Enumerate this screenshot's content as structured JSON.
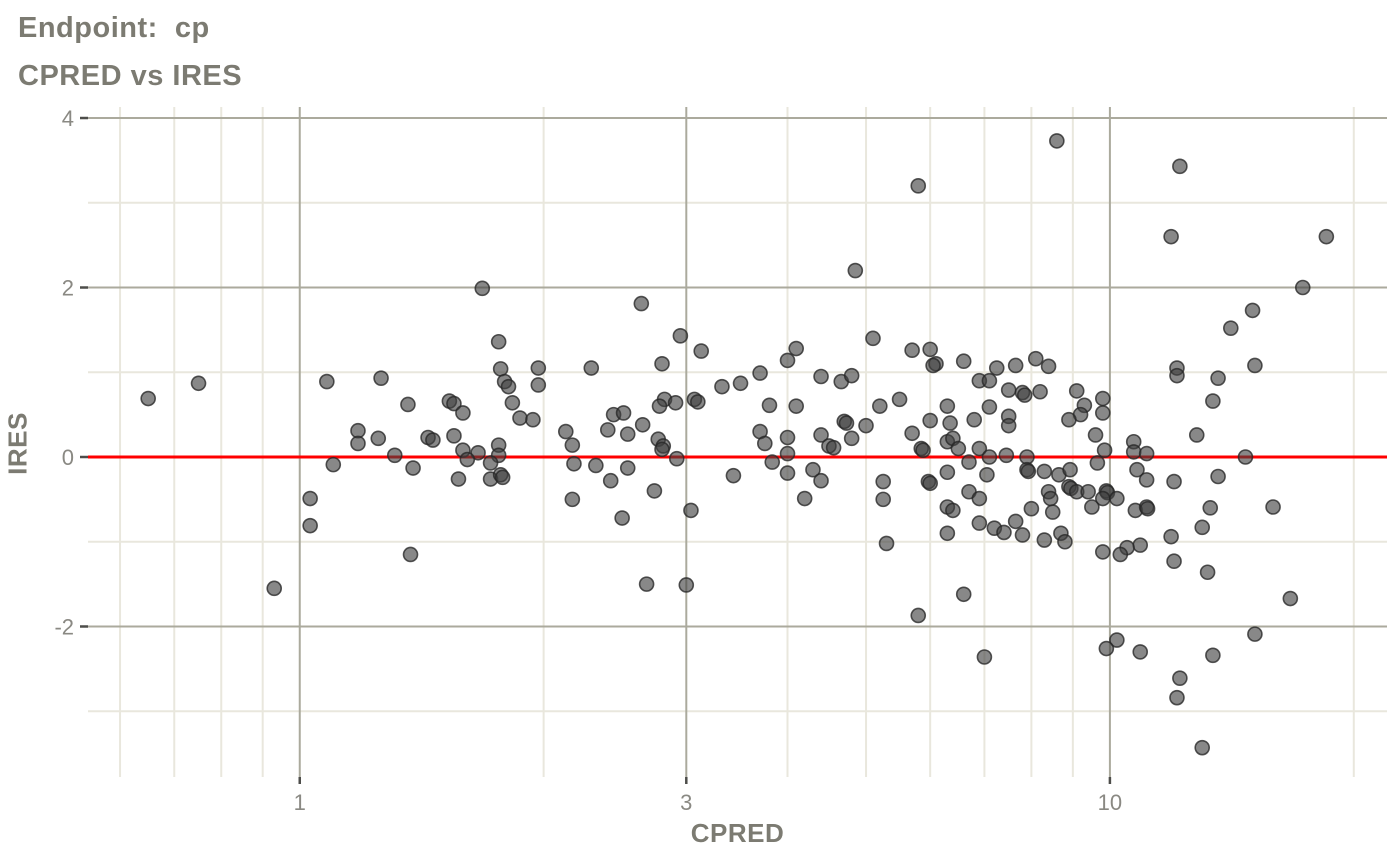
{
  "title": "Endpoint:  cp",
  "subtitle": "CPRED vs IRES",
  "chart_data": {
    "type": "scatter",
    "title": "Endpoint:  cp",
    "subtitle": "CPRED vs IRES",
    "xlabel": "CPRED",
    "ylabel": "IRES",
    "x_scale": "log10",
    "xlim": [
      0.5478,
      21.98
    ],
    "ylim": [
      -3.776,
      4.13
    ],
    "x_major_ticks": [
      1,
      3,
      10
    ],
    "x_major_tick_labels": [
      "1",
      "3",
      "10"
    ],
    "x_minor_ticks": [
      0.6,
      0.7,
      0.8,
      0.9,
      2,
      4,
      5,
      6,
      7,
      8,
      9,
      20
    ],
    "y_major_ticks": [
      -2,
      0,
      2,
      4
    ],
    "y_major_tick_labels": [
      "-2",
      "0",
      "2",
      "4"
    ],
    "y_minor_ticks": [
      -3,
      -1,
      1,
      3
    ],
    "grid": true,
    "legend": "none",
    "reference_line_y": 0,
    "colors": {
      "reference_line": "#ff0000",
      "major_grid": "#abaa9d",
      "minor_grid": "#e9e7dd",
      "point_fill": "#3f3f3f",
      "point_stroke": "#262626",
      "title_text": "#7c7b72",
      "tick_label": "#8a8983",
      "tick_mark": "#4d4d4a",
      "background": "#ffffff"
    },
    "points": [
      [
        0.65,
        0.69
      ],
      [
        0.75,
        0.87
      ],
      [
        1.08,
        0.89
      ],
      [
        1.26,
        0.93
      ],
      [
        1.36,
        0.62
      ],
      [
        1.18,
        0.31
      ],
      [
        1.25,
        0.22
      ],
      [
        1.18,
        0.16
      ],
      [
        1.31,
        0.02
      ],
      [
        1.38,
        -0.13
      ],
      [
        1.1,
        -0.09
      ],
      [
        1.03,
        -0.49
      ],
      [
        1.03,
        -0.81
      ],
      [
        1.37,
        -1.15
      ],
      [
        0.93,
        -1.55
      ],
      [
        1.68,
        1.99
      ],
      [
        2.64,
        1.81
      ],
      [
        1.76,
        1.36
      ],
      [
        2.95,
        1.43
      ],
      [
        3.13,
        1.25
      ],
      [
        1.77,
        1.04
      ],
      [
        1.97,
        1.05
      ],
      [
        2.29,
        1.05
      ],
      [
        2.8,
        1.1
      ],
      [
        1.79,
        0.89
      ],
      [
        1.81,
        0.83
      ],
      [
        1.97,
        0.85
      ],
      [
        3.32,
        0.83
      ],
      [
        1.53,
        0.66
      ],
      [
        1.55,
        0.63
      ],
      [
        1.59,
        0.52
      ],
      [
        1.83,
        0.64
      ],
      [
        2.82,
        0.68
      ],
      [
        2.78,
        0.6
      ],
      [
        2.91,
        0.64
      ],
      [
        3.07,
        0.68
      ],
      [
        3.1,
        0.65
      ],
      [
        1.87,
        0.46
      ],
      [
        1.94,
        0.44
      ],
      [
        2.44,
        0.5
      ],
      [
        2.51,
        0.52
      ],
      [
        2.4,
        0.32
      ],
      [
        2.54,
        0.27
      ],
      [
        2.65,
        0.38
      ],
      [
        1.44,
        0.23
      ],
      [
        1.46,
        0.2
      ],
      [
        1.55,
        0.25
      ],
      [
        2.13,
        0.3
      ],
      [
        2.77,
        0.21
      ],
      [
        2.81,
        0.13
      ],
      [
        1.59,
        0.08
      ],
      [
        1.66,
        0.05
      ],
      [
        1.61,
        -0.03
      ],
      [
        1.76,
        0.14
      ],
      [
        1.76,
        0.02
      ],
      [
        1.72,
        -0.07
      ],
      [
        2.17,
        0.14
      ],
      [
        2.18,
        -0.08
      ],
      [
        2.8,
        0.09
      ],
      [
        2.92,
        -0.02
      ],
      [
        2.32,
        -0.1
      ],
      [
        2.54,
        -0.13
      ],
      [
        1.57,
        -0.26
      ],
      [
        1.72,
        -0.26
      ],
      [
        1.77,
        -0.21
      ],
      [
        1.78,
        -0.24
      ],
      [
        2.42,
        -0.28
      ],
      [
        2.74,
        -0.4
      ],
      [
        2.17,
        -0.5
      ],
      [
        2.5,
        -0.72
      ],
      [
        3.04,
        -0.63
      ],
      [
        3.43,
        -0.22
      ],
      [
        2.68,
        -1.5
      ],
      [
        3.0,
        -1.51
      ],
      [
        5.8,
        3.2
      ],
      [
        4.85,
        2.2
      ],
      [
        8.6,
        3.73
      ],
      [
        5.1,
        1.4
      ],
      [
        4.1,
        1.28
      ],
      [
        5.7,
        1.26
      ],
      [
        6.0,
        1.27
      ],
      [
        4.0,
        1.14
      ],
      [
        6.1,
        1.1
      ],
      [
        6.05,
        1.08
      ],
      [
        6.6,
        1.13
      ],
      [
        3.7,
        0.99
      ],
      [
        3.5,
        0.87
      ],
      [
        4.4,
        0.95
      ],
      [
        4.66,
        0.89
      ],
      [
        4.8,
        0.96
      ],
      [
        6.9,
        0.9
      ],
      [
        7.1,
        0.9
      ],
      [
        7.25,
        1.05
      ],
      [
        7.65,
        1.08
      ],
      [
        8.1,
        1.16
      ],
      [
        8.4,
        1.07
      ],
      [
        7.5,
        0.79
      ],
      [
        7.8,
        0.76
      ],
      [
        7.85,
        0.73
      ],
      [
        8.2,
        0.77
      ],
      [
        3.8,
        0.61
      ],
      [
        4.1,
        0.6
      ],
      [
        5.2,
        0.6
      ],
      [
        5.5,
        0.68
      ],
      [
        6.3,
        0.6
      ],
      [
        7.1,
        0.59
      ],
      [
        4.7,
        0.42
      ],
      [
        4.73,
        0.4
      ],
      [
        5.0,
        0.37
      ],
      [
        4.8,
        0.22
      ],
      [
        6.0,
        0.43
      ],
      [
        6.35,
        0.4
      ],
      [
        6.8,
        0.44
      ],
      [
        7.5,
        0.48
      ],
      [
        7.5,
        0.37
      ],
      [
        3.7,
        0.3
      ],
      [
        4.0,
        0.23
      ],
      [
        3.75,
        0.16
      ],
      [
        4.4,
        0.26
      ],
      [
        4.5,
        0.13
      ],
      [
        4.56,
        0.11
      ],
      [
        5.7,
        0.28
      ],
      [
        5.85,
        0.1
      ],
      [
        5.88,
        0.08
      ],
      [
        6.3,
        0.18
      ],
      [
        6.4,
        0.22
      ],
      [
        6.5,
        0.1
      ],
      [
        6.9,
        0.1
      ],
      [
        7.1,
        0.0
      ],
      [
        7.45,
        0.02
      ],
      [
        7.9,
        0.0
      ],
      [
        3.83,
        -0.06
      ],
      [
        4.0,
        0.04
      ],
      [
        4.0,
        -0.19
      ],
      [
        4.3,
        -0.15
      ],
      [
        4.4,
        -0.28
      ],
      [
        4.2,
        -0.49
      ],
      [
        5.25,
        -0.29
      ],
      [
        5.25,
        -0.5
      ],
      [
        5.97,
        -0.29
      ],
      [
        6.0,
        -0.31
      ],
      [
        6.3,
        -0.18
      ],
      [
        6.7,
        -0.06
      ],
      [
        7.05,
        -0.21
      ],
      [
        6.3,
        -0.59
      ],
      [
        6.4,
        -0.63
      ],
      [
        6.7,
        -0.41
      ],
      [
        6.9,
        -0.49
      ],
      [
        7.9,
        -0.15
      ],
      [
        7.93,
        -0.17
      ],
      [
        8.3,
        -0.17
      ],
      [
        8.65,
        -0.21
      ],
      [
        8.9,
        -0.35
      ],
      [
        8.4,
        -0.41
      ],
      [
        8.45,
        -0.49
      ],
      [
        8.0,
        -0.61
      ],
      [
        8.5,
        -0.65
      ],
      [
        6.9,
        -0.78
      ],
      [
        7.2,
        -0.84
      ],
      [
        7.65,
        -0.76
      ],
      [
        7.8,
        -0.92
      ],
      [
        6.3,
        -0.9
      ],
      [
        7.4,
        -0.89
      ],
      [
        8.7,
        -0.9
      ],
      [
        8.3,
        -0.98
      ],
      [
        8.8,
        -1.0
      ],
      [
        5.3,
        -1.02
      ],
      [
        6.6,
        -1.62
      ],
      [
        5.8,
        -1.87
      ],
      [
        7.0,
        -2.36
      ],
      [
        12.2,
        3.43
      ],
      [
        11.9,
        2.6
      ],
      [
        18.5,
        2.6
      ],
      [
        17.3,
        2.0
      ],
      [
        15.0,
        1.73
      ],
      [
        14.1,
        1.52
      ],
      [
        12.1,
        1.05
      ],
      [
        12.1,
        0.96
      ],
      [
        15.1,
        1.08
      ],
      [
        13.6,
        0.93
      ],
      [
        13.4,
        0.66
      ],
      [
        9.1,
        0.78
      ],
      [
        9.8,
        0.69
      ],
      [
        9.3,
        0.61
      ],
      [
        9.2,
        0.5
      ],
      [
        8.9,
        0.44
      ],
      [
        9.8,
        0.52
      ],
      [
        9.6,
        0.26
      ],
      [
        12.8,
        0.26
      ],
      [
        10.7,
        0.18
      ],
      [
        9.85,
        0.08
      ],
      [
        10.7,
        0.06
      ],
      [
        11.1,
        0.04
      ],
      [
        9.65,
        -0.07
      ],
      [
        14.7,
        0.0
      ],
      [
        10.8,
        -0.15
      ],
      [
        11.1,
        -0.27
      ],
      [
        12.0,
        -0.29
      ],
      [
        13.6,
        -0.23
      ],
      [
        8.93,
        -0.15
      ],
      [
        8.95,
        -0.37
      ],
      [
        9.1,
        -0.41
      ],
      [
        9.4,
        -0.41
      ],
      [
        9.9,
        -0.4
      ],
      [
        9.93,
        -0.42
      ],
      [
        9.8,
        -0.49
      ],
      [
        10.2,
        -0.49
      ],
      [
        9.5,
        -0.59
      ],
      [
        10.75,
        -0.63
      ],
      [
        11.1,
        -0.59
      ],
      [
        11.13,
        -0.61
      ],
      [
        13.3,
        -0.6
      ],
      [
        15.9,
        -0.59
      ],
      [
        13.0,
        -0.83
      ],
      [
        11.9,
        -0.94
      ],
      [
        10.9,
        -1.04
      ],
      [
        10.5,
        -1.07
      ],
      [
        10.3,
        -1.15
      ],
      [
        9.8,
        -1.12
      ],
      [
        12.0,
        -1.23
      ],
      [
        13.2,
        -1.36
      ],
      [
        16.7,
        -1.67
      ],
      [
        15.1,
        -2.09
      ],
      [
        10.2,
        -2.16
      ],
      [
        9.9,
        -2.26
      ],
      [
        10.9,
        -2.3
      ],
      [
        13.4,
        -2.34
      ],
      [
        12.2,
        -2.61
      ],
      [
        12.1,
        -2.84
      ],
      [
        13.0,
        -3.43
      ]
    ]
  }
}
